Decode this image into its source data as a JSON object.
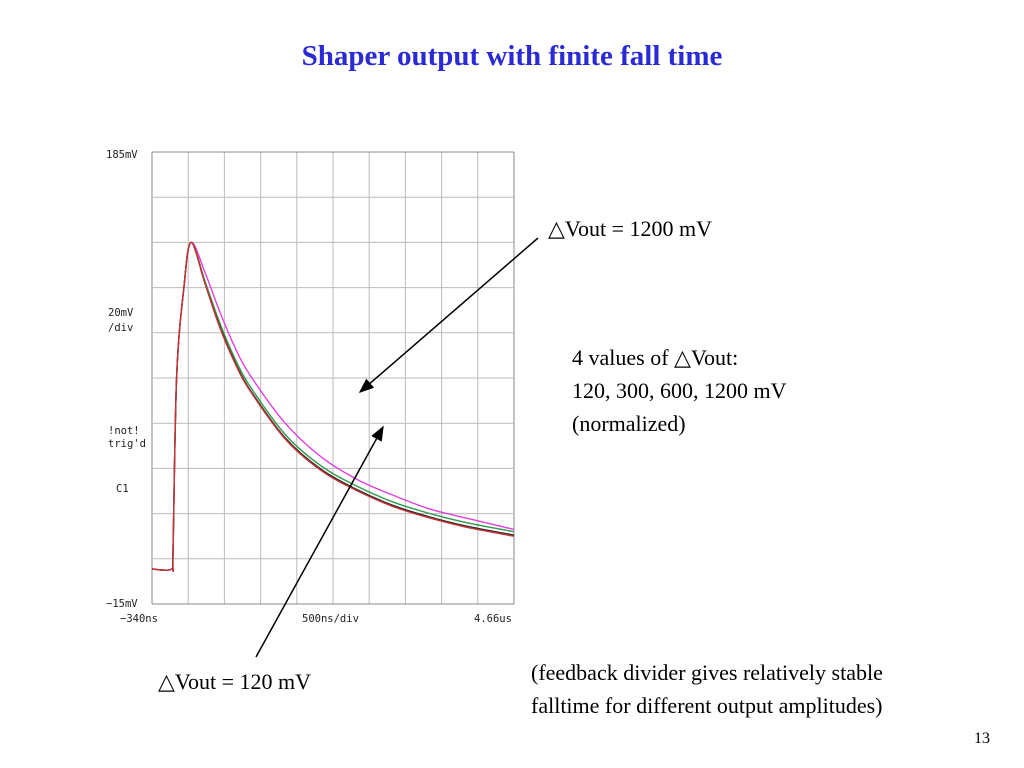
{
  "slide": {
    "title": "Shaper output with finite fall time",
    "page_number": "13",
    "title_color": "#2b2bd6"
  },
  "annotations": {
    "top_label": "△Vout = 1200 mV",
    "values_line1": "4 values of △Vout:",
    "values_line2": "120, 300, 600, 1200 mV",
    "values_line3": "(normalized)",
    "bottom_label": "△Vout = 120 mV",
    "feedback_line1": "(feedback divider gives relatively stable",
    "feedback_line2": "falltime for different output amplitudes)"
  },
  "chart_data": {
    "type": "line",
    "y_top_label": "185mV",
    "y_bottom_label": "−15mV",
    "y_scale_label_1": "20mV",
    "y_scale_label_2": "/div",
    "trigger_label_1": "!not!",
    "trigger_label_2": "trig'd",
    "channel_label": "C1",
    "x_left_label": "−340ns",
    "x_center_label": "500ns/div",
    "x_right_label": "4.66us",
    "xlim_ns": [
      -340,
      4660
    ],
    "ylim_mV": [
      -15,
      185
    ],
    "grid": true,
    "grid_divisions": {
      "x": 10,
      "y": 10
    },
    "series": [
      {
        "name": "△Vout = 120 mV",
        "color": "#c83232",
        "x": [
          -340,
          -70,
          -50,
          0,
          100,
          200,
          400,
          600,
          800,
          1000,
          1500,
          2000,
          2500,
          3000,
          3500,
          4000,
          4660
        ],
        "y": [
          0.5,
          0.5,
          8,
          85,
          125,
          145,
          126,
          107,
          92,
          80,
          58,
          44,
          35,
          28,
          23,
          19,
          15
        ]
      },
      {
        "name": "300 mV",
        "color": "#2a2a2a",
        "x": [
          -340,
          -70,
          -50,
          0,
          100,
          200,
          400,
          600,
          800,
          1000,
          1500,
          2000,
          2500,
          3000,
          3500,
          4000,
          4660
        ],
        "y": [
          0.5,
          0.5,
          8,
          85,
          125,
          145,
          126,
          107.5,
          92.5,
          80.5,
          58.5,
          44.5,
          35.5,
          28.5,
          23.5,
          19.5,
          15.5
        ]
      },
      {
        "name": "600 mV",
        "color": "#2f9a4b",
        "x": [
          -340,
          -70,
          -50,
          0,
          100,
          200,
          400,
          600,
          800,
          1000,
          1500,
          2000,
          2500,
          3000,
          3500,
          4000,
          4660
        ],
        "y": [
          0.5,
          0.5,
          8,
          85,
          125,
          145,
          127,
          109,
          94,
          82,
          60,
          46,
          37,
          30,
          25,
          21,
          17
        ]
      },
      {
        "name": "△Vout = 1200 mV",
        "color": "#e040e0",
        "x": [
          -340,
          -70,
          -50,
          0,
          100,
          200,
          400,
          600,
          800,
          1000,
          1500,
          2000,
          2500,
          3000,
          3500,
          4000,
          4660
        ],
        "y": [
          0.5,
          0.5,
          8,
          85,
          125,
          145,
          131,
          114,
          99,
          87,
          65,
          50,
          40,
          33,
          27,
          23,
          18
        ]
      }
    ]
  }
}
